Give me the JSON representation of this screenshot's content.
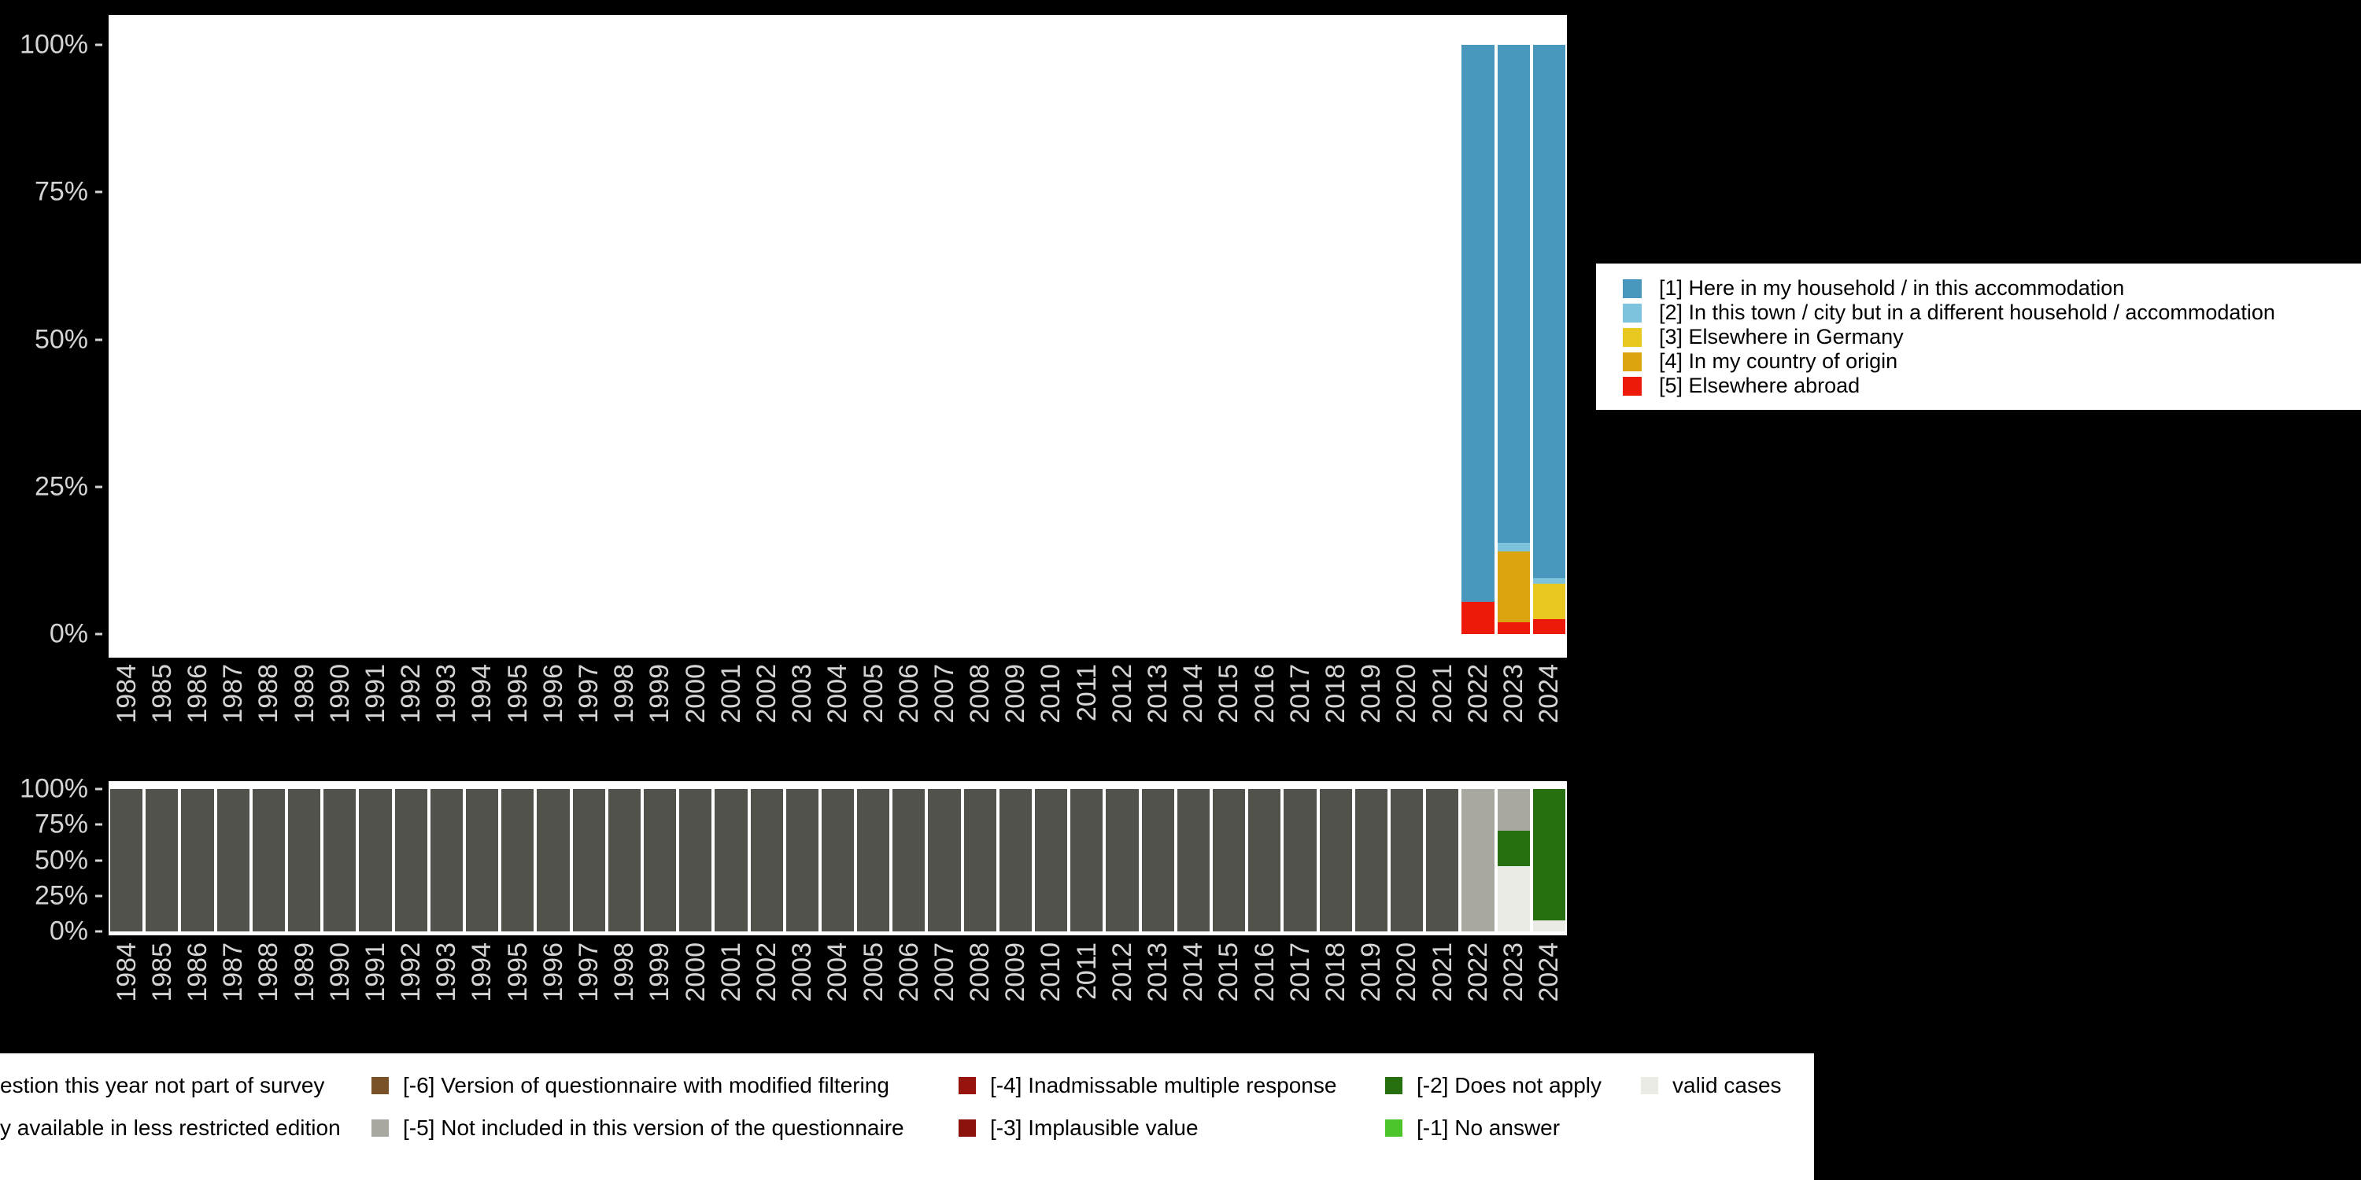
{
  "colors": {
    "background": "#000000",
    "plot_background": "#ffffff",
    "axis_text": "#d4d4d4",
    "legend_background": "#ffffff",
    "legend_text": "#000000"
  },
  "chart_data": [
    {
      "id": "distribution",
      "type": "bar",
      "stacked": true,
      "unit": "percent",
      "ylim": [
        0,
        100
      ],
      "grid": false,
      "categories": [
        "1984",
        "1985",
        "1986",
        "1987",
        "1988",
        "1989",
        "1990",
        "1991",
        "1992",
        "1993",
        "1994",
        "1995",
        "1996",
        "1997",
        "1998",
        "1999",
        "2000",
        "2001",
        "2002",
        "2003",
        "2004",
        "2005",
        "2006",
        "2007",
        "2008",
        "2009",
        "2010",
        "2011",
        "2012",
        "2013",
        "2014",
        "2015",
        "2016",
        "2017",
        "2018",
        "2019",
        "2020",
        "2021",
        "2022",
        "2023",
        "2024"
      ],
      "yticks": [
        {
          "label": "0%",
          "value": 0
        },
        {
          "label": "25%",
          "value": 25
        },
        {
          "label": "50%",
          "value": 50
        },
        {
          "label": "75%",
          "value": 75
        },
        {
          "label": "100%",
          "value": 100
        }
      ],
      "series": [
        {
          "name": "[5] Elsewhere abroad",
          "color": "#ed1a0a",
          "values": [
            0,
            0,
            0,
            0,
            0,
            0,
            0,
            0,
            0,
            0,
            0,
            0,
            0,
            0,
            0,
            0,
            0,
            0,
            0,
            0,
            0,
            0,
            0,
            0,
            0,
            0,
            0,
            0,
            0,
            0,
            0,
            0,
            0,
            0,
            0,
            0,
            0,
            0,
            5.5,
            2,
            2.5
          ]
        },
        {
          "name": "[4] In my country of origin",
          "color": "#dca50f",
          "values": [
            0,
            0,
            0,
            0,
            0,
            0,
            0,
            0,
            0,
            0,
            0,
            0,
            0,
            0,
            0,
            0,
            0,
            0,
            0,
            0,
            0,
            0,
            0,
            0,
            0,
            0,
            0,
            0,
            0,
            0,
            0,
            0,
            0,
            0,
            0,
            0,
            0,
            0,
            0,
            12,
            0
          ]
        },
        {
          "name": "[3] Elsewhere in Germany",
          "color": "#e8c720",
          "values": [
            0,
            0,
            0,
            0,
            0,
            0,
            0,
            0,
            0,
            0,
            0,
            0,
            0,
            0,
            0,
            0,
            0,
            0,
            0,
            0,
            0,
            0,
            0,
            0,
            0,
            0,
            0,
            0,
            0,
            0,
            0,
            0,
            0,
            0,
            0,
            0,
            0,
            0,
            0,
            0,
            6
          ]
        },
        {
          "name": "[2] In this town / city but in a different household / accommodation",
          "color": "#7ec3de",
          "values": [
            0,
            0,
            0,
            0,
            0,
            0,
            0,
            0,
            0,
            0,
            0,
            0,
            0,
            0,
            0,
            0,
            0,
            0,
            0,
            0,
            0,
            0,
            0,
            0,
            0,
            0,
            0,
            0,
            0,
            0,
            0,
            0,
            0,
            0,
            0,
            0,
            0,
            0,
            0,
            1.5,
            1
          ]
        },
        {
          "name": "[1] Here in my household / in this accommodation",
          "color": "#4a97bd",
          "values": [
            0,
            0,
            0,
            0,
            0,
            0,
            0,
            0,
            0,
            0,
            0,
            0,
            0,
            0,
            0,
            0,
            0,
            0,
            0,
            0,
            0,
            0,
            0,
            0,
            0,
            0,
            0,
            0,
            0,
            0,
            0,
            0,
            0,
            0,
            0,
            0,
            0,
            0,
            94.5,
            84.5,
            90.5
          ]
        }
      ]
    },
    {
      "id": "missing-values",
      "type": "bar",
      "stacked": true,
      "unit": "percent",
      "ylim": [
        0,
        100
      ],
      "grid": false,
      "categories": [
        "1984",
        "1985",
        "1986",
        "1987",
        "1988",
        "1989",
        "1990",
        "1991",
        "1992",
        "1993",
        "1994",
        "1995",
        "1996",
        "1997",
        "1998",
        "1999",
        "2000",
        "2001",
        "2002",
        "2003",
        "2004",
        "2005",
        "2006",
        "2007",
        "2008",
        "2009",
        "2010",
        "2011",
        "2012",
        "2013",
        "2014",
        "2015",
        "2016",
        "2017",
        "2018",
        "2019",
        "2020",
        "2021",
        "2022",
        "2023",
        "2024"
      ],
      "yticks": [
        {
          "label": "0%",
          "value": 0
        },
        {
          "label": "25%",
          "value": 25
        },
        {
          "label": "50%",
          "value": 50
        },
        {
          "label": "75%",
          "value": 75
        },
        {
          "label": "100%",
          "value": 100
        }
      ],
      "series": [
        {
          "name": "valid cases",
          "color": "#ebebe5",
          "values": [
            0,
            0,
            0,
            0,
            0,
            0,
            0,
            0,
            0,
            0,
            0,
            0,
            0,
            0,
            0,
            0,
            0,
            0,
            0,
            0,
            0,
            0,
            0,
            0,
            0,
            0,
            0,
            0,
            0,
            0,
            0,
            0,
            0,
            0,
            0,
            0,
            0,
            0,
            0,
            46,
            8
          ]
        },
        {
          "name": "[-2] Does not apply",
          "color": "#26700f",
          "values": [
            0,
            0,
            0,
            0,
            0,
            0,
            0,
            0,
            0,
            0,
            0,
            0,
            0,
            0,
            0,
            0,
            0,
            0,
            0,
            0,
            0,
            0,
            0,
            0,
            0,
            0,
            0,
            0,
            0,
            0,
            0,
            0,
            0,
            0,
            0,
            0,
            0,
            0,
            0,
            25,
            92
          ]
        },
        {
          "name": "[-5] Not included in this version of the questionnaire",
          "color": "#a8a8a0",
          "values": [
            0,
            0,
            0,
            0,
            0,
            0,
            0,
            0,
            0,
            0,
            0,
            0,
            0,
            0,
            0,
            0,
            0,
            0,
            0,
            0,
            0,
            0,
            0,
            0,
            0,
            0,
            0,
            0,
            0,
            0,
            0,
            0,
            0,
            0,
            0,
            0,
            0,
            0,
            100,
            29,
            0
          ]
        },
        {
          "name": "estion this year not part of survey",
          "color": "#50524b",
          "values": [
            100,
            100,
            100,
            100,
            100,
            100,
            100,
            100,
            100,
            100,
            100,
            100,
            100,
            100,
            100,
            100,
            100,
            100,
            100,
            100,
            100,
            100,
            100,
            100,
            100,
            100,
            100,
            100,
            100,
            100,
            100,
            100,
            100,
            100,
            100,
            100,
            100,
            100,
            0,
            0,
            0
          ]
        }
      ]
    }
  ],
  "legends": {
    "top": {
      "items": [
        {
          "label": "[1] Here in my household / in this accommodation",
          "color": "#4a97bd"
        },
        {
          "label": "[2] In this town / city but in a different household / accommodation",
          "color": "#7ec3de"
        },
        {
          "label": "[3] Elsewhere in Germany",
          "color": "#e8c720"
        },
        {
          "label": "[4] In my country of origin",
          "color": "#dca50f"
        },
        {
          "label": "[5] Elsewhere abroad",
          "color": "#ed1a0a"
        }
      ]
    },
    "bottom": {
      "rows": [
        [
          {
            "label": "estion this year not part of survey",
            "color": null
          },
          {
            "label": "[-6] Version of questionnaire with modified filtering",
            "color": "#7a5228"
          },
          {
            "label": "[-4] Inadmissable multiple response",
            "color": "#96140d"
          },
          {
            "label": "[-2] Does not apply",
            "color": "#26700f"
          },
          {
            "label": "valid cases",
            "color": "#ebebe5"
          }
        ],
        [
          {
            "label": "y available in less restricted edition",
            "color": null
          },
          {
            "label": "[-5] Not included in this version of the questionnaire",
            "color": "#a8a8a0"
          },
          {
            "label": "[-3] Implausible value",
            "color": "#8c120c"
          },
          {
            "label": "[-1] No answer",
            "color": "#4cc42c"
          }
        ]
      ]
    }
  }
}
